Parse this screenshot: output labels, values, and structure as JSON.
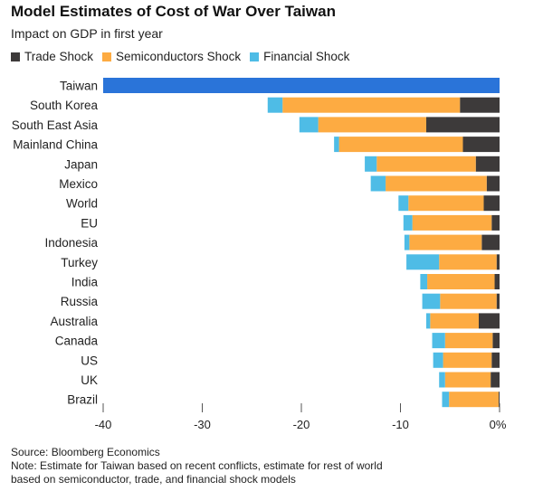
{
  "chart_data": {
    "type": "bar",
    "orientation": "horizontal-stacked",
    "title": "Model Estimates of Cost of War Over Taiwan",
    "subtitle": "Impact on GDP in first year",
    "categories": [
      "Taiwan",
      "South Korea",
      "South East Asia",
      "Mainland China",
      "Japan",
      "Mexico",
      "World",
      "EU",
      "Indonesia",
      "Turkey",
      "India",
      "Russia",
      "Australia",
      "Canada",
      "US",
      "UK",
      "Brazil"
    ],
    "series": [
      {
        "name": "Trade Shock",
        "color": "#3d3a3a",
        "values": [
          null,
          -4.0,
          -7.4,
          -3.7,
          -2.4,
          -1.3,
          -1.6,
          -0.8,
          -1.8,
          -0.3,
          -0.5,
          -0.3,
          -2.1,
          -0.7,
          -0.8,
          -0.9,
          -0.1
        ]
      },
      {
        "name": "Semiconductors Shock",
        "color": "#fdab42",
        "values": [
          null,
          -17.9,
          -10.9,
          -12.5,
          -10.0,
          -10.2,
          -7.6,
          -8.0,
          -7.3,
          -5.8,
          -6.8,
          -5.7,
          -4.9,
          -4.8,
          -4.9,
          -4.6,
          -5.0
        ]
      },
      {
        "name": "Financial Shock",
        "color": "#4ebce6",
        "values": [
          null,
          -1.5,
          -1.9,
          -0.5,
          -1.2,
          -1.5,
          -1.0,
          -0.9,
          -0.5,
          -3.3,
          -0.7,
          -1.8,
          -0.4,
          -1.3,
          -1.0,
          -0.6,
          -0.7
        ]
      }
    ],
    "total_only": {
      "Taiwan": -40
    },
    "total_only_color": "#2a74d9",
    "xlim": [
      -40,
      0
    ],
    "xticks": [
      -40,
      -30,
      -20,
      -10,
      0
    ],
    "xtick_labels": [
      "-40",
      "-30",
      "-20",
      "-10",
      "0%"
    ],
    "legend_placement": "top-left",
    "grid": false
  },
  "footer": {
    "source": "Source: Bloomberg Economics",
    "note1": "Note: Estimate for Taiwan based on recent conflicts, estimate for rest of world",
    "note2": "based on semiconductor, trade, and financial shock models"
  }
}
